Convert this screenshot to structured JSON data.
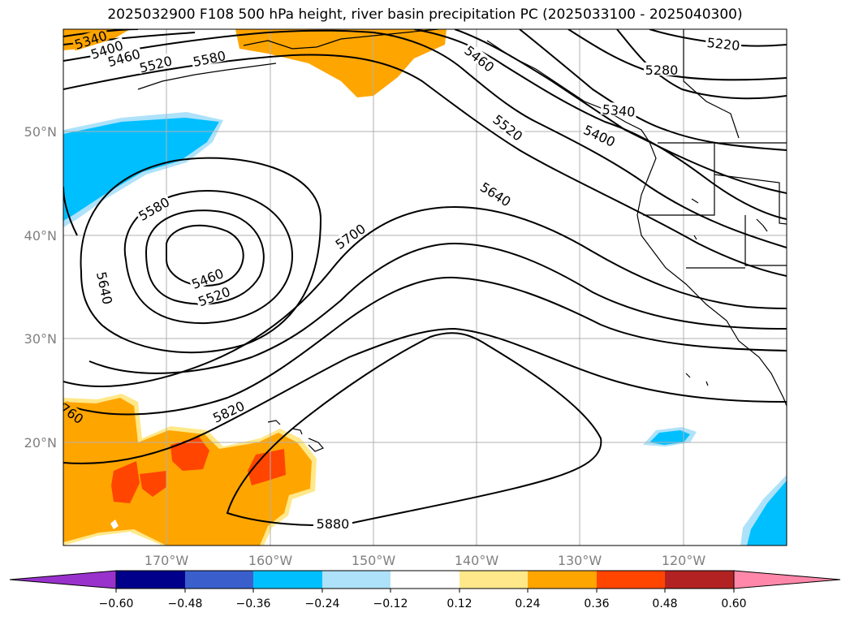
{
  "title": "2025032900 F108 500 hPa height, river basin precipitation PC (2025033100 - 2025040300)",
  "map": {
    "lat_labels": [
      "50°N",
      "40°N",
      "30°N",
      "20°N"
    ],
    "lon_labels": [
      "170°W",
      "160°W",
      "150°W",
      "140°W",
      "130°W",
      "120°W"
    ],
    "contour_labels": [
      "5340",
      "5400",
      "5460",
      "5520",
      "5580",
      "5460",
      "5520",
      "5640",
      "5400",
      "5340",
      "5280",
      "5220",
      "5580",
      "5460",
      "5520",
      "5640",
      "5700",
      "5820",
      "5880",
      "760"
    ],
    "colors": {
      "land_outline": "#000000",
      "contour": "#000000",
      "grid": "#b0b0b0",
      "positive_low": "#ffe88a",
      "positive_mid": "#ffa500",
      "positive_high": "#ff4500",
      "negative_low": "#aee2fa",
      "negative_mid": "#00bfff"
    }
  },
  "colorbar": {
    "tick_labels": [
      "−0.60",
      "−0.48",
      "−0.36",
      "−0.24",
      "−0.12",
      "0.12",
      "0.24",
      "0.36",
      "0.48",
      "0.60"
    ],
    "colors": [
      "#9932cc",
      "#00008b",
      "#3a5fcd",
      "#00bfff",
      "#aee2fa",
      "#ffffff",
      "#ffe88a",
      "#ffa500",
      "#ff4500",
      "#b22222",
      "#ff88aa"
    ]
  }
}
